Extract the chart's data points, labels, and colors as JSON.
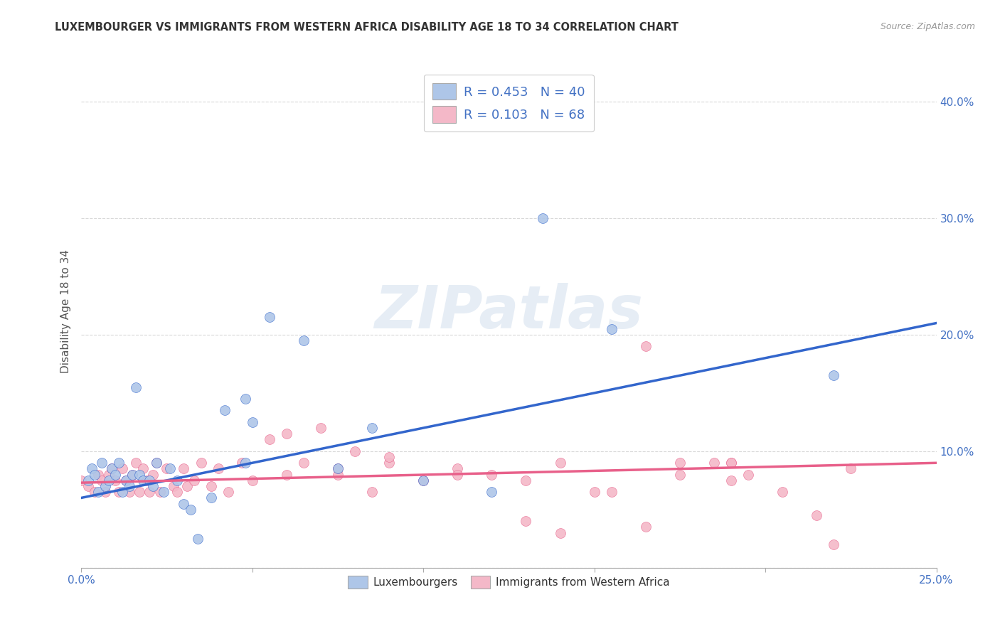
{
  "title": "LUXEMBOURGER VS IMMIGRANTS FROM WESTERN AFRICA DISABILITY AGE 18 TO 34 CORRELATION CHART",
  "source": "Source: ZipAtlas.com",
  "ylabel": "Disability Age 18 to 34",
  "xlim": [
    0.0,
    0.25
  ],
  "ylim": [
    0.0,
    0.44
  ],
  "series1_color": "#aec6e8",
  "series2_color": "#f4b8c8",
  "line1_color": "#3366cc",
  "line2_color": "#e8608a",
  "R1": 0.453,
  "N1": 40,
  "R2": 0.103,
  "N2": 68,
  "line1_y0": 0.06,
  "line1_y1": 0.21,
  "line2_y0": 0.073,
  "line2_y1": 0.09,
  "lux_x": [
    0.002,
    0.003,
    0.004,
    0.005,
    0.006,
    0.007,
    0.008,
    0.009,
    0.01,
    0.011,
    0.012,
    0.013,
    0.014,
    0.015,
    0.016,
    0.017,
    0.018,
    0.02,
    0.021,
    0.022,
    0.024,
    0.026,
    0.028,
    0.03,
    0.032,
    0.034,
    0.038,
    0.042,
    0.05,
    0.055,
    0.065,
    0.075,
    0.085,
    0.1,
    0.12,
    0.135,
    0.155,
    0.22,
    0.048,
    0.048
  ],
  "lux_y": [
    0.075,
    0.085,
    0.08,
    0.065,
    0.09,
    0.07,
    0.075,
    0.085,
    0.08,
    0.09,
    0.065,
    0.075,
    0.07,
    0.08,
    0.155,
    0.08,
    0.075,
    0.075,
    0.07,
    0.09,
    0.065,
    0.085,
    0.075,
    0.055,
    0.05,
    0.025,
    0.06,
    0.135,
    0.125,
    0.215,
    0.195,
    0.085,
    0.12,
    0.075,
    0.065,
    0.3,
    0.205,
    0.165,
    0.145,
    0.09
  ],
  "imm_x": [
    0.0,
    0.002,
    0.004,
    0.005,
    0.006,
    0.007,
    0.008,
    0.009,
    0.01,
    0.011,
    0.012,
    0.013,
    0.014,
    0.015,
    0.016,
    0.017,
    0.018,
    0.019,
    0.02,
    0.021,
    0.022,
    0.023,
    0.025,
    0.027,
    0.028,
    0.03,
    0.031,
    0.033,
    0.035,
    0.038,
    0.04,
    0.043,
    0.047,
    0.05,
    0.055,
    0.06,
    0.065,
    0.07,
    0.075,
    0.08,
    0.085,
    0.09,
    0.1,
    0.11,
    0.12,
    0.13,
    0.14,
    0.15,
    0.165,
    0.175,
    0.185,
    0.19,
    0.195,
    0.205,
    0.215,
    0.225,
    0.165,
    0.19,
    0.14,
    0.06,
    0.075,
    0.09,
    0.11,
    0.13,
    0.155,
    0.175,
    0.19,
    0.22
  ],
  "imm_y": [
    0.075,
    0.07,
    0.065,
    0.08,
    0.075,
    0.065,
    0.08,
    0.085,
    0.075,
    0.065,
    0.085,
    0.075,
    0.065,
    0.08,
    0.09,
    0.065,
    0.085,
    0.075,
    0.065,
    0.08,
    0.09,
    0.065,
    0.085,
    0.07,
    0.065,
    0.085,
    0.07,
    0.075,
    0.09,
    0.07,
    0.085,
    0.065,
    0.09,
    0.075,
    0.11,
    0.08,
    0.09,
    0.12,
    0.08,
    0.1,
    0.065,
    0.09,
    0.075,
    0.085,
    0.08,
    0.04,
    0.09,
    0.065,
    0.035,
    0.08,
    0.09,
    0.075,
    0.08,
    0.065,
    0.045,
    0.085,
    0.19,
    0.09,
    0.03,
    0.115,
    0.085,
    0.095,
    0.08,
    0.075,
    0.065,
    0.09,
    0.09,
    0.02
  ],
  "watermark_text": "ZIPatlas",
  "background_color": "#ffffff",
  "grid_color": "#d8d8d8",
  "legend_box_color": "#f0f4f8"
}
